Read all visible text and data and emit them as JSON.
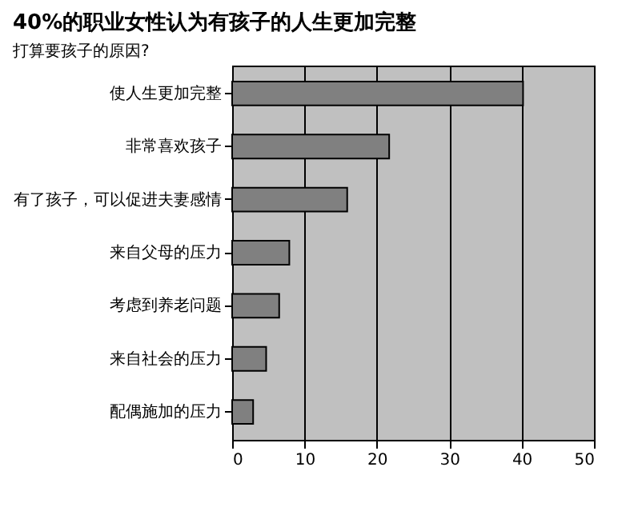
{
  "chart_data": {
    "type": "bar",
    "orientation": "horizontal",
    "title": "40%的职业女性认为有孩子的人生更加完整",
    "subtitle": "打算要孩子的原因?",
    "categories": [
      "使人生更加完整",
      "非常喜欢孩子",
      "有了孩子，可以促进夫妻感情",
      "来自父母的压力",
      "考虑到养老问题",
      "来自社会的压力",
      "配偶施加的压力"
    ],
    "values": [
      40.2,
      21.7,
      15.9,
      7.9,
      6.5,
      4.7,
      2.9
    ],
    "color": "#808080",
    "xlim": [
      0,
      50
    ],
    "xticks": [
      0,
      10,
      20,
      30,
      40,
      50
    ],
    "grid": "x"
  }
}
